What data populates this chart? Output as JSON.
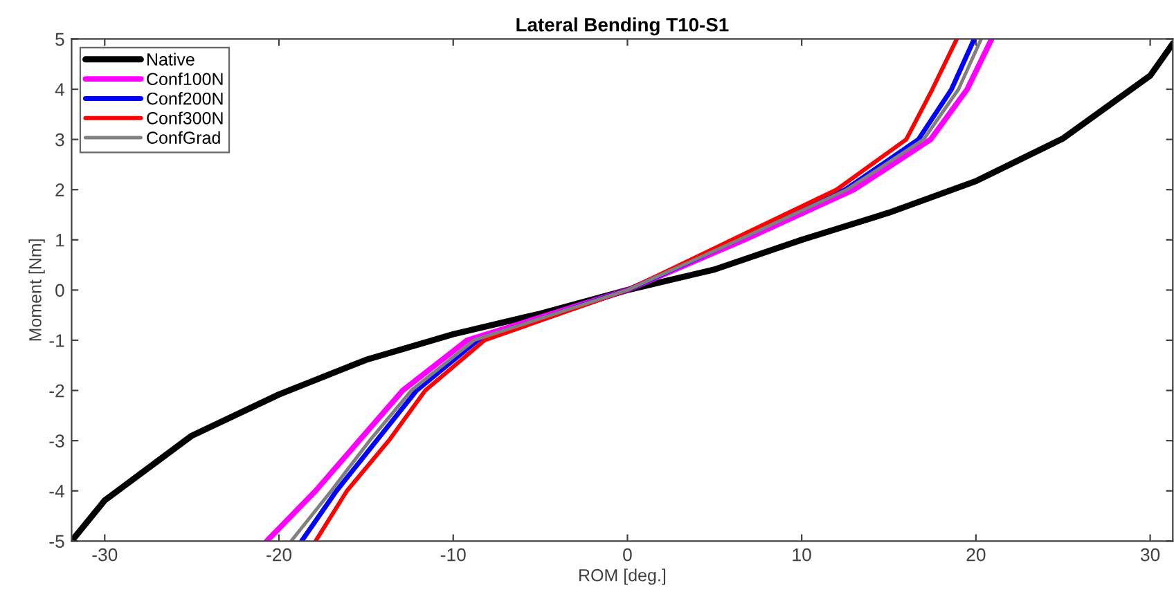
{
  "chart_data": {
    "type": "line",
    "title": "Lateral Bending T10-S1",
    "xlabel": "ROM [deg.]",
    "ylabel": "Moment [Nm]",
    "xlim": [
      -31.9,
      31.3
    ],
    "ylim": [
      -5,
      5
    ],
    "xticks": [
      -30,
      -20,
      -10,
      0,
      10,
      20,
      30
    ],
    "yticks": [
      -5,
      -4,
      -3,
      -2,
      -1,
      0,
      1,
      2,
      3,
      4,
      5
    ],
    "grid": false,
    "legend": "top left",
    "marker": "none",
    "line_style": "solid",
    "series": [
      {
        "name": "Native",
        "color": "#000000",
        "x": [
          -31.9,
          -30,
          -25,
          -20,
          -15,
          -10,
          -5,
          0,
          5,
          10,
          15,
          20,
          25,
          30,
          31.3
        ],
        "values": [
          -5,
          -4.19,
          -2.9,
          -2.08,
          -1.39,
          -0.88,
          -0.47,
          0,
          0.41,
          1.0,
          1.54,
          2.17,
          3.02,
          4.27,
          4.91
        ]
      },
      {
        "name": "Conf100N",
        "color": "#ff00ff",
        "x": [
          -20.7,
          -17.9,
          -15.4,
          -12.9,
          -9.2,
          0,
          6.7,
          13.0,
          17.4,
          19.5,
          20.9
        ],
        "values": [
          -5,
          -4,
          -3,
          -2,
          -1,
          0,
          1,
          2,
          3,
          4,
          5
        ]
      },
      {
        "name": "Conf200N",
        "color": "#0000ff",
        "x": [
          -18.7,
          -16.7,
          -14.4,
          -12.1,
          -8.6,
          0,
          6.3,
          12.5,
          16.7,
          18.6,
          19.9
        ],
        "values": [
          -5,
          -4,
          -3,
          -2,
          -1,
          0,
          1,
          2,
          3,
          4,
          5
        ]
      },
      {
        "name": "Conf300N",
        "color": "#ff0000",
        "x": [
          -17.9,
          -16.1,
          -13.7,
          -11.6,
          -8.2,
          0,
          6.0,
          12.0,
          16.0,
          17.5,
          18.9
        ],
        "values": [
          -5,
          -4,
          -3,
          -2,
          -1,
          0,
          1,
          2,
          3,
          4,
          5
        ]
      },
      {
        "name": "ConfGrad",
        "color": "#808080",
        "x": [
          -19.3,
          -17.0,
          -14.8,
          -12.4,
          -8.8,
          0,
          6.4,
          12.6,
          17.0,
          19.0,
          20.3
        ],
        "values": [
          -5,
          -4,
          -3,
          -2,
          -1,
          0,
          1,
          2,
          3,
          4,
          5
        ]
      }
    ]
  }
}
